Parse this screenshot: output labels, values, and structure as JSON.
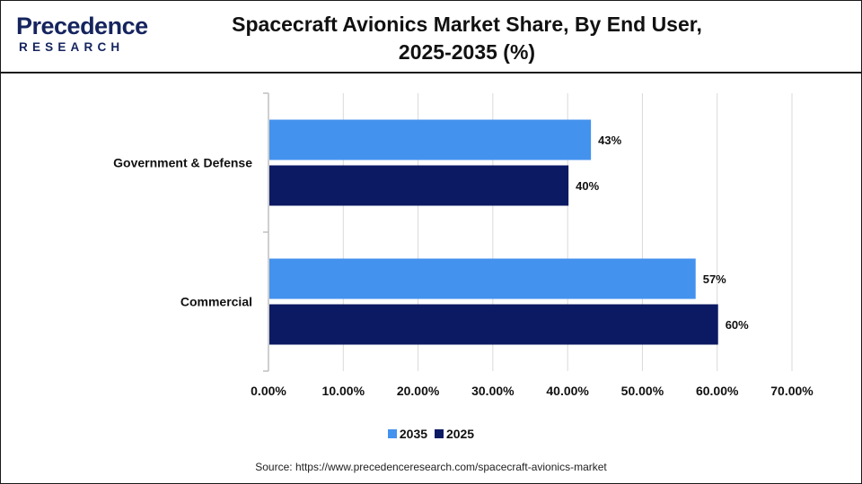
{
  "header": {
    "logo_main": "Precedence",
    "logo_sub": "RESEARCH",
    "title_line1": "Spacecraft Avionics Market Share, By End User,",
    "title_line2": "2025-2035 (%)"
  },
  "colors": {
    "brand": "#15245e",
    "series_2035": "#4392ee",
    "series_2025": "#0c1a63"
  },
  "chart_data": {
    "type": "bar",
    "orientation": "horizontal",
    "title": "Spacecraft Avionics Market Share, By End User, 2025-2035 (%)",
    "categories": [
      "Government & Defense",
      "Commercial"
    ],
    "series": [
      {
        "name": "2035",
        "values": [
          43,
          57
        ],
        "labels": [
          "43%",
          "57%"
        ],
        "color": "#4392ee"
      },
      {
        "name": "2025",
        "values": [
          40,
          60
        ],
        "labels": [
          "40%",
          "60%"
        ],
        "color": "#0c1a63"
      }
    ],
    "xlim": [
      0,
      70
    ],
    "xticks": [
      "0.00%",
      "10.00%",
      "20.00%",
      "30.00%",
      "40.00%",
      "50.00%",
      "60.00%",
      "70.00%"
    ],
    "grid": true,
    "legend": "bottom"
  },
  "legend": {
    "item1": "2035",
    "item2": "2025"
  },
  "source": "Source: https://www.precedenceresearch.com/spacecraft-avionics-market"
}
